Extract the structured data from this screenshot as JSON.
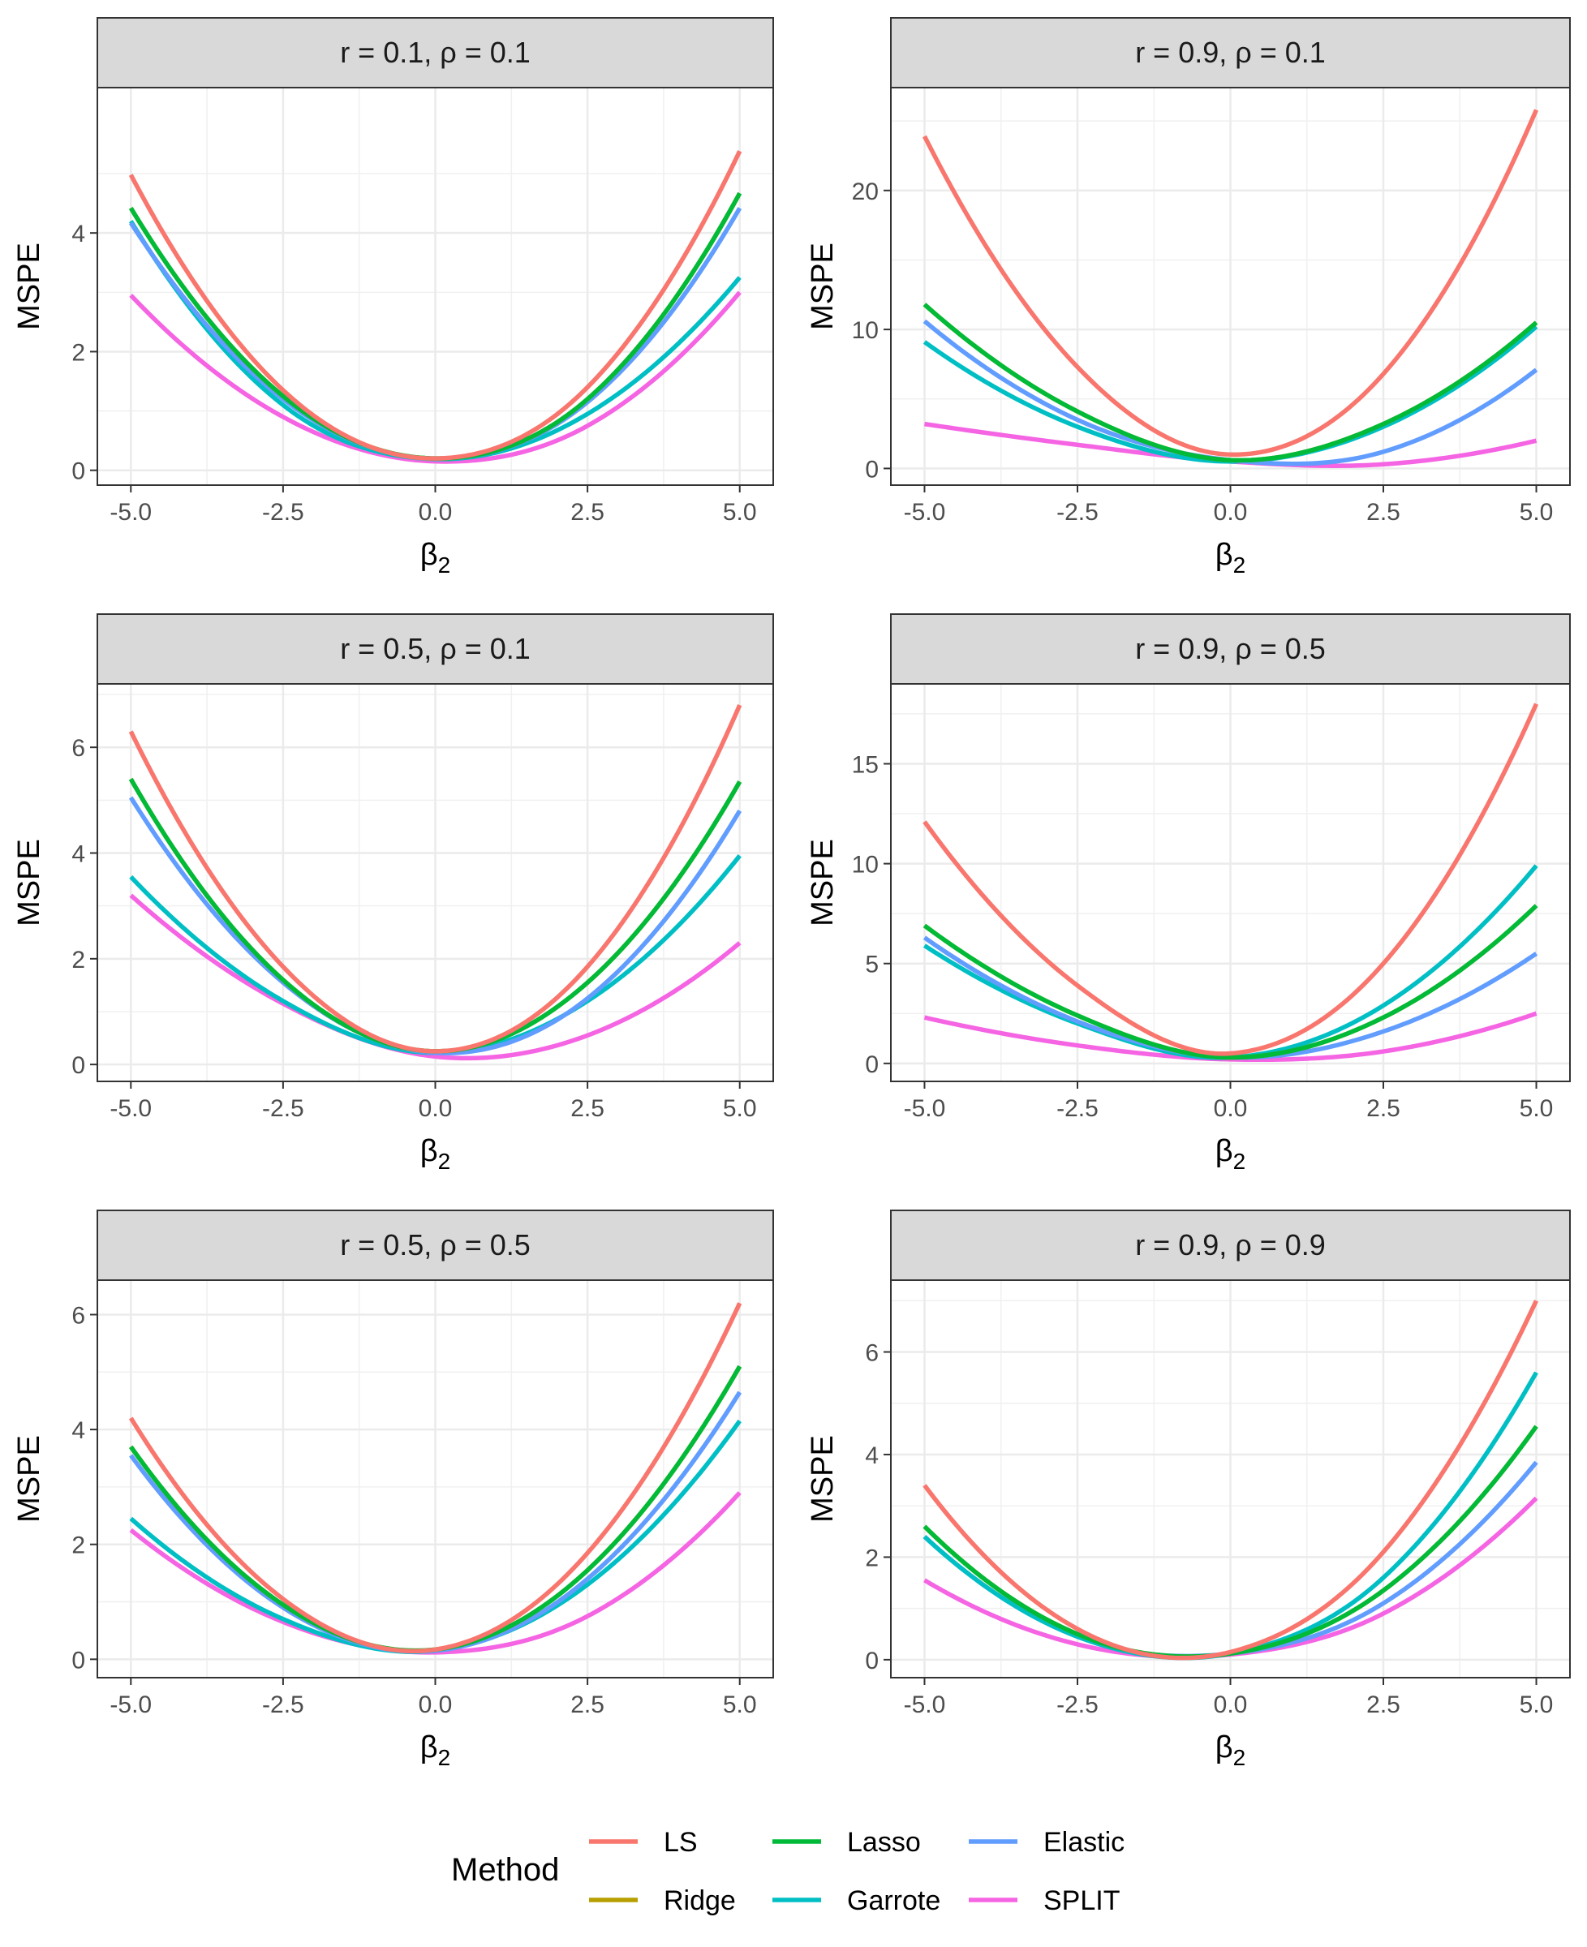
{
  "chart_data": {
    "type": "line",
    "layout": "facet grid, 3 rows x 2 columns",
    "x_values": [
      -5,
      -2.5,
      0,
      2.5,
      5
    ],
    "legend": {
      "title": "Method",
      "placement": "bottom",
      "entries": [
        {
          "name": "LS",
          "color": "#F8766D"
        },
        {
          "name": "Ridge",
          "color": "#B79F00"
        },
        {
          "name": "Lasso",
          "color": "#00BA38"
        },
        {
          "name": "Garrote",
          "color": "#00BFC4"
        },
        {
          "name": "Elastic",
          "color": "#619CFF"
        },
        {
          "name": "SPLIT",
          "color": "#F564E3"
        }
      ]
    },
    "panels": [
      {
        "id": "p1",
        "strip": "r = 0.1,  ρ = 0.1",
        "xlabel": "β",
        "xlabel_sub": "2",
        "ylabel": "MSPE",
        "xlim": [
          -5.55,
          5.55
        ],
        "ylim": [
          -0.25,
          6.45
        ],
        "xticks": [
          -5,
          -2.5,
          0,
          2.5,
          5
        ],
        "xtick_labels": [
          "-5.0",
          "-2.5",
          "0.0",
          "2.5",
          "5.0"
        ],
        "yticks": [
          0,
          2,
          4
        ],
        "ytick_labels": [
          "0",
          "2",
          "4"
        ],
        "series": [
          {
            "name": "SPLIT",
            "values": [
              2.95,
              0.9,
              0.15,
              0.75,
              3.0
            ]
          },
          {
            "name": "Garrote",
            "values": [
              4.2,
              1.1,
              0.19,
              0.95,
              3.25
            ]
          },
          {
            "name": "Elastic",
            "values": [
              4.17,
              1.2,
              0.2,
              1.15,
              4.42
            ]
          },
          {
            "name": "Ridge",
            "values": [
              4.42,
              1.25,
              0.2,
              1.2,
              4.67
            ]
          },
          {
            "name": "Lasso",
            "values": [
              4.42,
              1.25,
              0.2,
              1.2,
              4.67
            ]
          },
          {
            "name": "LS",
            "values": [
              4.98,
              1.35,
              0.2,
              1.4,
              5.38
            ]
          }
        ]
      },
      {
        "id": "p2",
        "strip": "r = 0.9,  ρ = 0.1",
        "xlabel": "β",
        "xlabel_sub": "2",
        "ylabel": "MSPE",
        "xlim": [
          -5.55,
          5.55
        ],
        "ylim": [
          -1.2,
          27.4
        ],
        "xticks": [
          -5,
          -2.5,
          0,
          2.5,
          5
        ],
        "xtick_labels": [
          "-5.0",
          "-2.5",
          "0.0",
          "2.5",
          "5.0"
        ],
        "yticks": [
          0,
          10,
          20
        ],
        "ytick_labels": [
          "0",
          "10",
          "20"
        ],
        "series": [
          {
            "name": "SPLIT",
            "values": [
              3.2,
              1.7,
              0.5,
              0.3,
              2.0
            ]
          },
          {
            "name": "Garrote",
            "values": [
              9.1,
              3.0,
              0.5,
              3.0,
              10.2
            ]
          },
          {
            "name": "Elastic",
            "values": [
              10.6,
              3.5,
              0.6,
              1.2,
              7.1
            ]
          },
          {
            "name": "Ridge",
            "values": [
              11.8,
              4.1,
              0.6,
              3.2,
              10.5
            ]
          },
          {
            "name": "Lasso",
            "values": [
              11.8,
              4.1,
              0.6,
              3.2,
              10.5
            ]
          },
          {
            "name": "LS",
            "values": [
              23.9,
              7.3,
              1.0,
              6.8,
              25.8
            ]
          }
        ]
      },
      {
        "id": "p3",
        "strip": "r = 0.5,  ρ = 0.1",
        "xlabel": "β",
        "xlabel_sub": "2",
        "ylabel": "MSPE",
        "xlim": [
          -5.55,
          5.55
        ],
        "ylim": [
          -0.32,
          7.2
        ],
        "xticks": [
          -5,
          -2.5,
          0,
          2.5,
          5
        ],
        "xtick_labels": [
          "-5.0",
          "-2.5",
          "0.0",
          "2.5",
          "5.0"
        ],
        "yticks": [
          0,
          2,
          4,
          6
        ],
        "ytick_labels": [
          "0",
          "2",
          "4",
          "6"
        ],
        "series": [
          {
            "name": "SPLIT",
            "values": [
              3.2,
              1.15,
              0.15,
              0.55,
              2.3
            ]
          },
          {
            "name": "Garrote",
            "values": [
              3.55,
              1.2,
              0.22,
              1.2,
              3.95
            ]
          },
          {
            "name": "Elastic",
            "values": [
              5.05,
              1.55,
              0.22,
              1.25,
              4.8
            ]
          },
          {
            "name": "Ridge",
            "values": [
              5.4,
              1.6,
              0.25,
              1.55,
              5.35
            ]
          },
          {
            "name": "Lasso",
            "values": [
              5.4,
              1.6,
              0.25,
              1.55,
              5.35
            ]
          },
          {
            "name": "LS",
            "values": [
              6.3,
              1.85,
              0.25,
              1.85,
              6.8
            ]
          }
        ]
      },
      {
        "id": "p4",
        "strip": "r = 0.9,  ρ = 0.5",
        "xlabel": "β",
        "xlabel_sub": "2",
        "ylabel": "MSPE",
        "xlim": [
          -5.55,
          5.55
        ],
        "ylim": [
          -0.9,
          19.0
        ],
        "xticks": [
          -5,
          -2.5,
          0,
          2.5,
          5
        ],
        "xtick_labels": [
          "-5.0",
          "-2.5",
          "0.0",
          "2.5",
          "5.0"
        ],
        "yticks": [
          0,
          5,
          10,
          15
        ],
        "ytick_labels": [
          "0",
          "5",
          "10",
          "15"
        ],
        "series": [
          {
            "name": "SPLIT",
            "values": [
              2.3,
              0.9,
              0.2,
              0.6,
              2.5
            ]
          },
          {
            "name": "Garrote",
            "values": [
              5.9,
              2.0,
              0.3,
              2.9,
              9.9
            ]
          },
          {
            "name": "Elastic",
            "values": [
              6.3,
              2.1,
              0.3,
              1.6,
              5.5
            ]
          },
          {
            "name": "Ridge",
            "values": [
              6.9,
              2.4,
              0.3,
              2.3,
              7.9
            ]
          },
          {
            "name": "Lasso",
            "values": [
              6.9,
              2.4,
              0.3,
              2.3,
              7.9
            ]
          },
          {
            "name": "LS",
            "values": [
              12.1,
              3.9,
              0.5,
              5.0,
              18.0
            ]
          }
        ]
      },
      {
        "id": "p5",
        "strip": "r = 0.5,  ρ = 0.5",
        "xlabel": "β",
        "xlabel_sub": "2",
        "ylabel": "MSPE",
        "xlim": [
          -5.55,
          5.55
        ],
        "ylim": [
          -0.32,
          6.6
        ],
        "xticks": [
          -5,
          -2.5,
          0,
          2.5,
          5
        ],
        "xtick_labels": [
          "-5.0",
          "-2.5",
          "0.0",
          "2.5",
          "5.0"
        ],
        "yticks": [
          0,
          2,
          4,
          6
        ],
        "ytick_labels": [
          "0",
          "2",
          "4",
          "6"
        ],
        "series": [
          {
            "name": "SPLIT",
            "values": [
              2.25,
              0.65,
              0.12,
              0.75,
              2.9
            ]
          },
          {
            "name": "Garrote",
            "values": [
              2.45,
              0.7,
              0.15,
              1.3,
              4.15
            ]
          },
          {
            "name": "Elastic",
            "values": [
              3.55,
              0.9,
              0.15,
              1.4,
              4.65
            ]
          },
          {
            "name": "Ridge",
            "values": [
              3.7,
              0.95,
              0.17,
              1.55,
              5.1
            ]
          },
          {
            "name": "Lasso",
            "values": [
              3.7,
              0.95,
              0.17,
              1.55,
              5.1
            ]
          },
          {
            "name": "LS",
            "values": [
              4.2,
              1.05,
              0.17,
              1.85,
              6.2
            ]
          }
        ]
      },
      {
        "id": "p6",
        "strip": "r = 0.9,  ρ = 0.9",
        "xlabel": "β",
        "xlabel_sub": "2",
        "ylabel": "MSPE",
        "xlim": [
          -5.55,
          5.55
        ],
        "ylim": [
          -0.35,
          7.4
        ],
        "xticks": [
          -5,
          -2.5,
          0,
          2.5,
          5
        ],
        "xtick_labels": [
          "-5.0",
          "-2.5",
          "0.0",
          "2.5",
          "5.0"
        ],
        "yticks": [
          0,
          2,
          4,
          6
        ],
        "ytick_labels": [
          "0",
          "2",
          "4",
          "6"
        ],
        "series": [
          {
            "name": "SPLIT",
            "values": [
              1.55,
              0.3,
              0.1,
              0.9,
              3.15
            ]
          },
          {
            "name": "Elastic",
            "values": [
              2.4,
              0.45,
              0.12,
              1.1,
              3.85
            ]
          },
          {
            "name": "Garrote",
            "values": [
              2.4,
              0.45,
              0.12,
              1.6,
              5.6
            ]
          },
          {
            "name": "Ridge",
            "values": [
              2.6,
              0.5,
              0.12,
              1.35,
              4.55
            ]
          },
          {
            "name": "Lasso",
            "values": [
              2.6,
              0.5,
              0.12,
              1.35,
              4.55
            ]
          },
          {
            "name": "LS",
            "values": [
              3.4,
              0.6,
              0.15,
              2.1,
              7.0
            ]
          }
        ]
      }
    ]
  }
}
